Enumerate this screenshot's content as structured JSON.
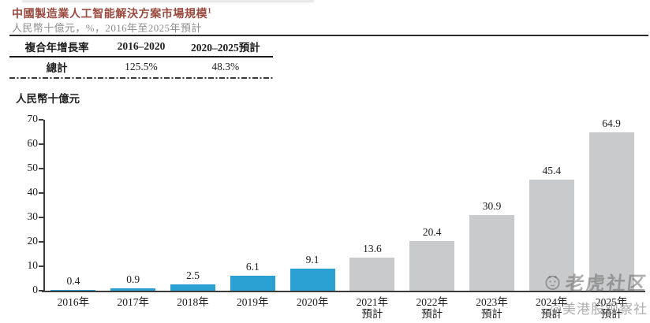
{
  "page": {
    "title": "中國製造業人工智能解決方案市場規模",
    "title_footnote_marker": "1",
    "subtitle": "人民幣十億元，%，2016年至2025年預計"
  },
  "cagr_table": {
    "col_headers": [
      "複合年增長率",
      "2016–2020",
      "2020–2025預計"
    ],
    "row_label": "總計",
    "row_values": [
      "125.5%",
      "48.3%"
    ]
  },
  "chart_data": {
    "type": "bar",
    "title": "中國製造業人工智能解決方案市場規模",
    "ylabel": "人民幣十億元",
    "ylim": [
      0,
      70
    ],
    "yticks": [
      70,
      60,
      50,
      40,
      30,
      20,
      10,
      0
    ],
    "grid": false,
    "legend": null,
    "categories": [
      [
        "2016年"
      ],
      [
        "2017年"
      ],
      [
        "2018年"
      ],
      [
        "2019年"
      ],
      [
        "2020年"
      ],
      [
        "2021年",
        "預計"
      ],
      [
        "2022年",
        "預計"
      ],
      [
        "2023年",
        "預計"
      ],
      [
        "2024年",
        "預計"
      ],
      [
        "2025年",
        "預計"
      ]
    ],
    "values": [
      0.4,
      0.9,
      2.5,
      6.1,
      9.1,
      13.6,
      20.4,
      30.9,
      45.4,
      64.9
    ],
    "data_labels": [
      "0.4",
      "0.9",
      "2.5",
      "6.1",
      "9.1",
      "13.6",
      "20.4",
      "30.9",
      "45.4",
      "64.9"
    ],
    "actual_color": "#2AA1D2",
    "forecast_color": "#C9CACB",
    "forecast_start_index": 5,
    "axis_color": "#3c3c3c"
  },
  "watermark": {
    "community": "老虎社区",
    "handle": "@美港股观察社"
  }
}
